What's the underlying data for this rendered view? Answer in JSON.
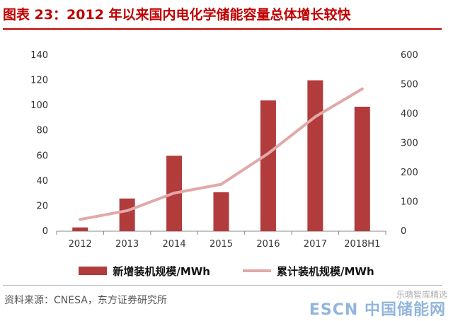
{
  "title": "图表 23：2012 年以来国内电化学储能容量总体增长较快",
  "source": "资料来源：CNESA，东方证券研究所",
  "watermark": "ESCN 中国储能网",
  "watermark_small": "乐晴智库精选",
  "colors": {
    "bar": "#b23b3b",
    "line": "#e2a8a8",
    "accent": "#c00000"
  },
  "chart_data": {
    "type": "bar",
    "categories": [
      "2012",
      "2013",
      "2014",
      "2015",
      "2016",
      "2017",
      "2018H1"
    ],
    "series": [
      {
        "name": "新增装机规模/MWh",
        "type": "bar",
        "axis": "left",
        "values": [
          3,
          26,
          60,
          31,
          104,
          120,
          99
        ]
      },
      {
        "name": "累计装机规模/MWh",
        "type": "line",
        "axis": "right",
        "values": [
          40,
          70,
          130,
          160,
          265,
          390,
          485
        ]
      }
    ],
    "y_left": {
      "min": 0,
      "max": 140,
      "ticks": [
        0,
        20,
        40,
        60,
        80,
        100,
        120,
        140
      ]
    },
    "y_right": {
      "min": 0,
      "max": 600,
      "ticks": [
        0,
        100,
        200,
        300,
        400,
        500,
        600
      ]
    },
    "grid": false,
    "legend_position": "bottom"
  }
}
